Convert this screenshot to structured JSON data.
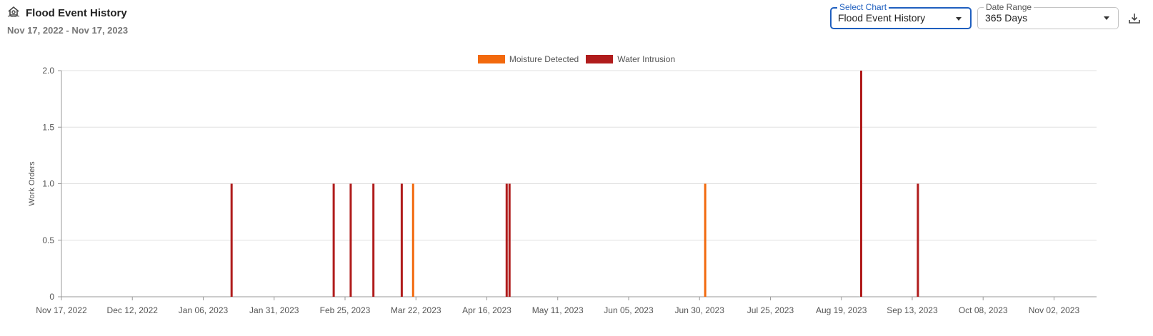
{
  "header": {
    "title": "Flood Event History",
    "date_range_text": "Nov 17, 2022 - Nov 17, 2023",
    "icon": "house-flood-icon"
  },
  "controls": {
    "select_chart": {
      "label": "Select Chart",
      "value": "Flood Event History"
    },
    "date_range": {
      "label": "Date Range",
      "value": "365 Days"
    },
    "download_icon": "download-icon"
  },
  "colors": {
    "moisture": "#f2690d",
    "intrusion": "#b01c1c",
    "grid": "#e0e0e0",
    "axis": "#999999",
    "accent": "#1f5fbf"
  },
  "chart_data": {
    "type": "bar",
    "ylabel": "Work Orders",
    "xlabel": "",
    "title": "",
    "ylim": [
      0,
      2
    ],
    "yticks": [
      "0",
      "0.5",
      "1.0",
      "1.5",
      "2.0"
    ],
    "xlim": [
      "2022-11-17",
      "2023-11-17"
    ],
    "xticks": [
      "Nov 17, 2022",
      "Dec 12, 2022",
      "Jan 06, 2023",
      "Jan 31, 2023",
      "Feb 25, 2023",
      "Mar 22, 2023",
      "Apr 16, 2023",
      "May 11, 2023",
      "Jun 05, 2023",
      "Jun 30, 2023",
      "Jul 25, 2023",
      "Aug 19, 2023",
      "Sep 13, 2023",
      "Oct 08, 2023",
      "Nov 02, 2023"
    ],
    "legend_position": "top-center",
    "grid": true,
    "series": [
      {
        "name": "Moisture Detected",
        "color": "#f2690d",
        "points": [
          {
            "x": "2023-03-21",
            "y": 1
          },
          {
            "x": "2023-07-02",
            "y": 1
          }
        ]
      },
      {
        "name": "Water Intrusion",
        "color": "#b01c1c",
        "points": [
          {
            "x": "2023-01-16",
            "y": 1
          },
          {
            "x": "2023-02-21",
            "y": 1
          },
          {
            "x": "2023-02-27",
            "y": 1
          },
          {
            "x": "2023-03-07",
            "y": 1
          },
          {
            "x": "2023-03-17",
            "y": 1
          },
          {
            "x": "2023-04-23",
            "y": 1
          },
          {
            "x": "2023-04-24",
            "y": 1
          },
          {
            "x": "2023-08-26",
            "y": 2
          },
          {
            "x": "2023-09-15",
            "y": 1
          }
        ]
      }
    ]
  }
}
